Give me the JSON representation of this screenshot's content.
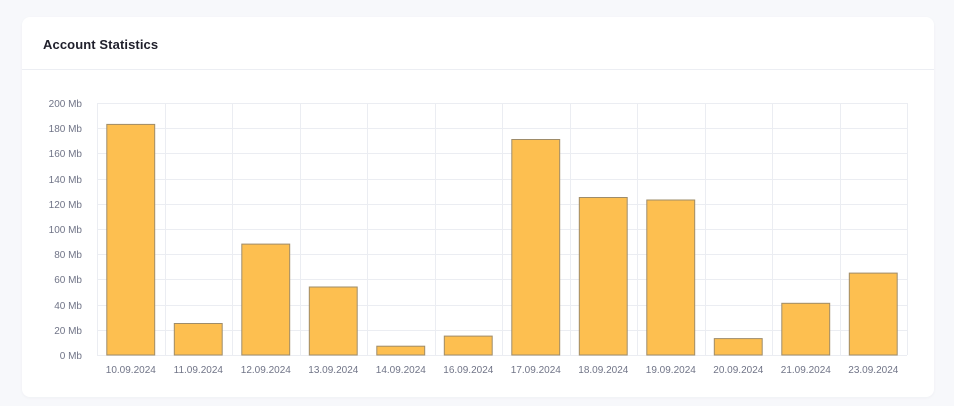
{
  "card": {
    "title": "Account Statistics"
  },
  "chart_data": {
    "type": "bar",
    "title": "Account Statistics",
    "xlabel": "",
    "ylabel": "",
    "unit": "Mb",
    "categories": [
      "10.09.2024",
      "11.09.2024",
      "12.09.2024",
      "13.09.2024",
      "14.09.2024",
      "16.09.2024",
      "17.09.2024",
      "18.09.2024",
      "19.09.2024",
      "20.09.2024",
      "21.09.2024",
      "23.09.2024"
    ],
    "values": [
      183,
      25,
      88,
      54,
      7,
      15,
      171,
      125,
      123,
      13,
      41,
      65
    ],
    "ylim": [
      0,
      200
    ],
    "yticks": [
      0,
      20,
      40,
      60,
      80,
      100,
      120,
      140,
      160,
      180,
      200
    ],
    "ytick_labels": [
      "0 Mb",
      "20 Mb",
      "40 Mb",
      "60 Mb",
      "80 Mb",
      "100 Mb",
      "120 Mb",
      "140 Mb",
      "160 Mb",
      "180 Mb",
      "200 Mb"
    ],
    "grid": true,
    "legend": "none",
    "bar_color": "#fdbf50",
    "bar_border_color": "#9e8c6a"
  }
}
